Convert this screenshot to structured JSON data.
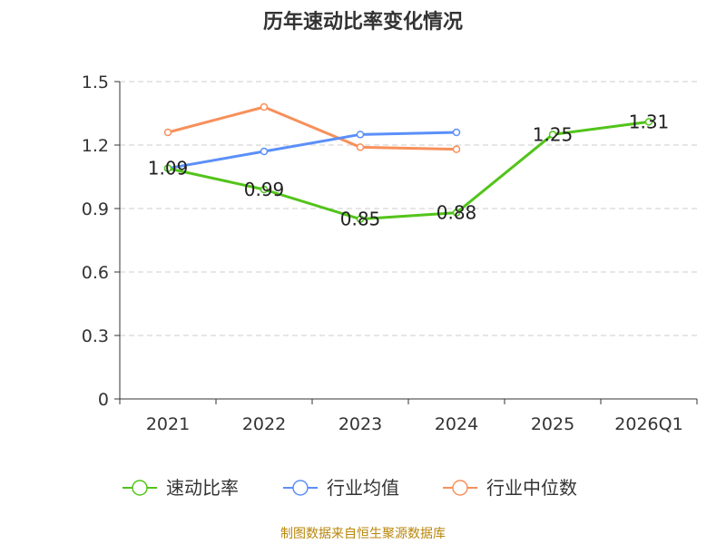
{
  "chart_data": {
    "type": "line",
    "title": "历年速动比率变化情况",
    "categories": [
      "2021",
      "2022",
      "2023",
      "2024",
      "2025",
      "2026Q1"
    ],
    "ylim": [
      0,
      1.5
    ],
    "yticks": [
      "0",
      "0.3",
      "0.6",
      "0.9",
      "1.2",
      "1.5"
    ],
    "grid": true,
    "legend_position": "bottom",
    "series": [
      {
        "name": "速动比率",
        "color": "#52c41a",
        "values": [
          1.09,
          0.99,
          0.85,
          0.88,
          1.25,
          1.31
        ],
        "labels": [
          "1.09",
          "0.99",
          "0.85",
          "0.88",
          "1.25",
          "1.31"
        ]
      },
      {
        "name": "行业均值",
        "color": "#5b8ff9",
        "values": [
          1.09,
          1.17,
          1.25,
          1.26,
          null,
          null
        ]
      },
      {
        "name": "行业中位数",
        "color": "#f7905a",
        "values": [
          1.26,
          1.38,
          1.19,
          1.18,
          null,
          null
        ]
      }
    ]
  },
  "source": "制图数据来自恒生聚源数据库"
}
